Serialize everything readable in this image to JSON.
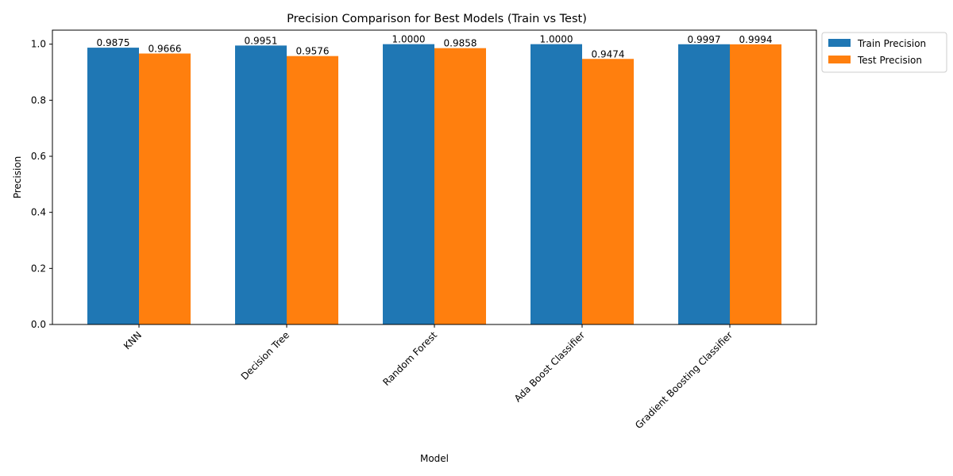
{
  "chart_data": {
    "type": "bar",
    "title": "Precision Comparison for Best Models (Train vs Test)",
    "xlabel": "Model",
    "ylabel": "Precision",
    "ylim": [
      0,
      1.05
    ],
    "yticks": [
      "0.0",
      "0.2",
      "0.4",
      "0.6",
      "0.8",
      "1.0"
    ],
    "categories": [
      "KNN",
      "Decision Tree",
      "Random Forest",
      "Ada Boost Classifier",
      "Gradient Boosting Classifier"
    ],
    "series": [
      {
        "name": "Train Precision",
        "color": "#1f77b4",
        "values": [
          0.9875,
          0.9951,
          1.0,
          1.0,
          0.9997
        ],
        "labels": [
          "0.9875",
          "0.9951",
          "1.0000",
          "1.0000",
          "0.9997"
        ]
      },
      {
        "name": "Test Precision",
        "color": "#ff7f0e",
        "values": [
          0.9666,
          0.9576,
          0.9858,
          0.9474,
          0.9994
        ],
        "labels": [
          "0.9666",
          "0.9576",
          "0.9858",
          "0.9474",
          "0.9994"
        ]
      }
    ],
    "legend_position": "outside-top-right",
    "grid": false
  }
}
